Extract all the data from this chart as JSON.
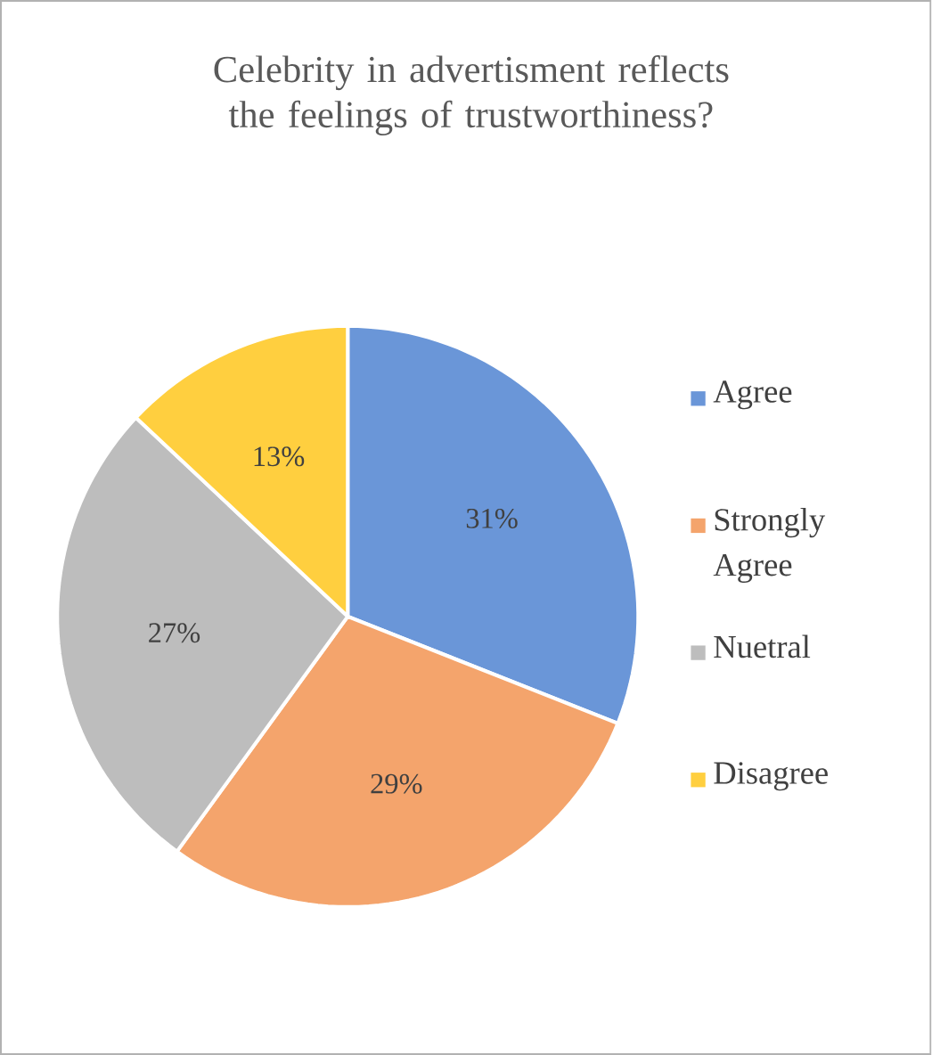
{
  "chart_data": {
    "type": "pie",
    "title": "Celebrity in advertisment reflects the feelings of trustworthiness?",
    "categories": [
      "Agree",
      "Strongly Agree",
      "Nuetral",
      "Disagree"
    ],
    "values": [
      31,
      29,
      27,
      13
    ],
    "value_labels": [
      "31%",
      "29%",
      "27%",
      "13%"
    ],
    "colors": [
      "#6a96d8",
      "#f4a46c",
      "#bdbdbd",
      "#ffcf3f"
    ],
    "legend": "right"
  }
}
